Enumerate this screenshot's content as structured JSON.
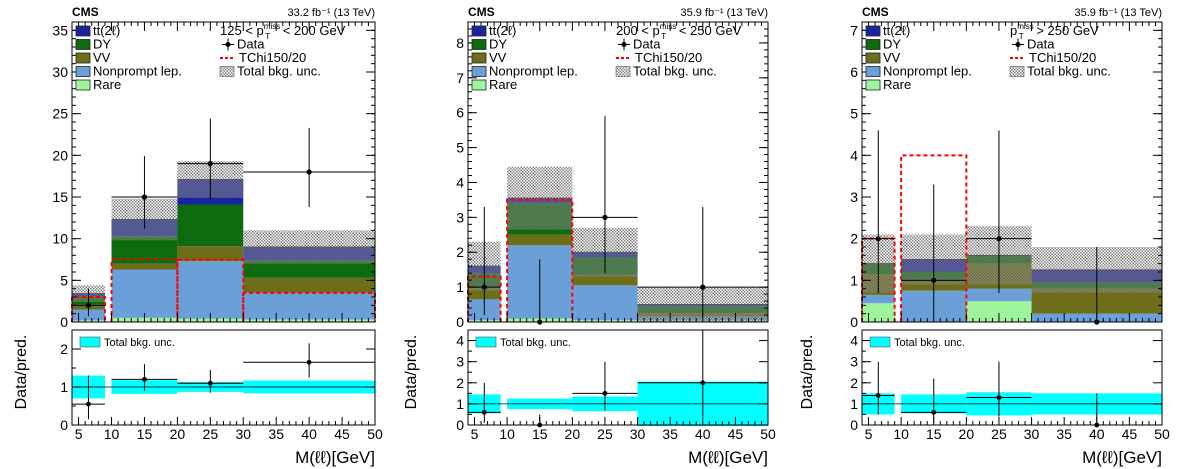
{
  "figure": {
    "y_label": "Data/pred.",
    "x_label": "M(ℓℓ)[GeV]",
    "experiment": "CMS",
    "ratio_legend": "Total bkg. unc."
  },
  "colors": {
    "ttbar": "#1a24a0",
    "DY": "#0d6b0d",
    "VV": "#6e6d1a",
    "Nonprompt": "#6a9fd8",
    "Rare": "#9ef59e",
    "signal": "#ff0000",
    "unc": "#9a9a9a",
    "ratio_unc": "#00ffff"
  },
  "chart_data": [
    {
      "type": "bar",
      "stacked": true,
      "lumi": "33.2 fb⁻¹ (13 TeV)",
      "region": "125 < p_T^miss < 200 GeV",
      "bins": [
        [
          4,
          9
        ],
        [
          10,
          20
        ],
        [
          20,
          30
        ],
        [
          30,
          50
        ]
      ],
      "xlim": [
        4,
        50
      ],
      "ylim": [
        0,
        36
      ],
      "yticks": [
        0,
        5,
        10,
        15,
        20,
        25,
        30,
        35
      ],
      "ratio_ylim": [
        0,
        2.5
      ],
      "ratio_yticks": [
        0,
        1,
        2
      ],
      "xticks": [
        5,
        10,
        15,
        20,
        25,
        30,
        35,
        40,
        45,
        50
      ],
      "legend": [
        "tt(2ℓ)",
        "DY",
        "VV",
        "Nonprompt lep.",
        "Rare",
        "Data",
        "TChi150/20",
        "Total bkg. unc."
      ],
      "series": [
        {
          "name": "Rare",
          "values": [
            0.2,
            0.5,
            0.4,
            0.3
          ]
        },
        {
          "name": "Nonprompt lep.",
          "values": [
            1.3,
            5.8,
            6.9,
            3.2
          ]
        },
        {
          "name": "VV",
          "values": [
            0.6,
            0.7,
            1.8,
            1.8
          ]
        },
        {
          "name": "DY",
          "values": [
            1.0,
            3.3,
            5.0,
            2.1
          ]
        },
        {
          "name": "tt(2ℓ)",
          "values": [
            0.3,
            2.0,
            3.0,
            1.6
          ]
        }
      ],
      "unc": [
        1.0,
        2.5,
        2.2,
        2.0
      ],
      "signal": [
        3.0,
        7.5,
        7.5,
        3.5
      ],
      "data": [
        {
          "x": 6.5,
          "y": 2.0,
          "lo": 1.3,
          "hi": 2.0
        },
        {
          "x": 15,
          "y": 15,
          "lo": 3.8,
          "hi": 4.9
        },
        {
          "x": 25,
          "y": 19,
          "lo": 4.3,
          "hi": 5.4
        },
        {
          "x": 40,
          "y": 18,
          "lo": 4.2,
          "hi": 5.3
        }
      ],
      "ratio": [
        {
          "x": 6.5,
          "y": 0.55,
          "lo": 0.4,
          "hi": 0.75
        },
        {
          "x": 15,
          "y": 1.2,
          "lo": 0.3,
          "hi": 0.4
        },
        {
          "x": 25,
          "y": 1.1,
          "lo": 0.25,
          "hi": 0.35
        },
        {
          "x": 40,
          "y": 1.65,
          "lo": 0.4,
          "hi": 0.5
        }
      ],
      "ratio_unc": [
        0.3,
        0.18,
        0.13,
        0.17
      ]
    },
    {
      "type": "bar",
      "stacked": true,
      "lumi": "35.9 fb⁻¹ (13 TeV)",
      "region": "200 < p_T^miss < 250 GeV",
      "bins": [
        [
          4,
          9
        ],
        [
          10,
          20
        ],
        [
          20,
          30
        ],
        [
          30,
          50
        ]
      ],
      "xlim": [
        4,
        50
      ],
      "ylim": [
        0,
        8.6
      ],
      "yticks": [
        0,
        1,
        2,
        3,
        4,
        5,
        6,
        7,
        8
      ],
      "ratio_ylim": [
        0,
        4.5
      ],
      "ratio_yticks": [
        0,
        1,
        2,
        3,
        4
      ],
      "xticks": [
        5,
        10,
        15,
        20,
        25,
        30,
        35,
        40,
        45,
        50
      ],
      "legend": [
        "tt(2ℓ)",
        "DY",
        "VV",
        "Nonprompt lep.",
        "Rare",
        "Data",
        "TChi150/20",
        "Total bkg. unc."
      ],
      "series": [
        {
          "name": "Rare",
          "values": [
            0.05,
            0.1,
            0.05,
            0.05
          ]
        },
        {
          "name": "Nonprompt lep.",
          "values": [
            0.6,
            2.1,
            1.0,
            0.1
          ]
        },
        {
          "name": "VV",
          "values": [
            0.35,
            0.3,
            0.3,
            0.1
          ]
        },
        {
          "name": "DY",
          "values": [
            0.4,
            0.9,
            0.5,
            0.2
          ]
        },
        {
          "name": "tt(2ℓ)",
          "values": [
            0.2,
            0.15,
            0.15,
            0.05
          ]
        }
      ],
      "unc": [
        0.7,
        0.9,
        0.7,
        0.5
      ],
      "signal": [
        1.3,
        3.5,
        0,
        0
      ],
      "data": [
        {
          "x": 6.5,
          "y": 1.0,
          "lo": 0.8,
          "hi": 2.3
        },
        {
          "x": 15,
          "y": 0,
          "lo": 0,
          "hi": 1.8
        },
        {
          "x": 25,
          "y": 3,
          "lo": 1.6,
          "hi": 2.9
        },
        {
          "x": 40,
          "y": 1.0,
          "lo": 0.8,
          "hi": 2.3
        }
      ],
      "ratio": [
        {
          "x": 6.5,
          "y": 0.6,
          "lo": 0.5,
          "hi": 1.4
        },
        {
          "x": 15,
          "y": 0,
          "lo": 0,
          "hi": 0.5
        },
        {
          "x": 25,
          "y": 1.5,
          "lo": 0.8,
          "hi": 1.5
        },
        {
          "x": 40,
          "y": 2.0,
          "lo": 1.6,
          "hi": 3.4
        }
      ],
      "ratio_unc": [
        0.45,
        0.25,
        0.35,
        1.05
      ]
    },
    {
      "type": "bar",
      "stacked": true,
      "lumi": "35.9 fb⁻¹ (13 TeV)",
      "region": "p_T^miss > 250 GeV",
      "bins": [
        [
          4,
          9
        ],
        [
          10,
          20
        ],
        [
          20,
          30
        ],
        [
          30,
          50
        ]
      ],
      "xlim": [
        4,
        50
      ],
      "ylim": [
        0,
        7.2
      ],
      "yticks": [
        0,
        1,
        2,
        3,
        4,
        5,
        6,
        7
      ],
      "ratio_ylim": [
        0,
        4.5
      ],
      "ratio_yticks": [
        0,
        1,
        2,
        3,
        4
      ],
      "xticks": [
        5,
        10,
        15,
        20,
        25,
        30,
        35,
        40,
        45,
        50
      ],
      "legend": [
        "tt(2ℓ)",
        "DY",
        "VV",
        "Nonprompt lep.",
        "Rare",
        "Data",
        "TChi150/20",
        "Total bkg. unc."
      ],
      "series": [
        {
          "name": "Rare",
          "values": [
            0.45,
            0.0,
            0.5,
            0.0
          ]
        },
        {
          "name": "Nonprompt lep.",
          "values": [
            0.2,
            0.75,
            0.3,
            0.2
          ]
        },
        {
          "name": "VV",
          "values": [
            0.5,
            0.25,
            0.6,
            0.6
          ]
        },
        {
          "name": "DY",
          "values": [
            0.25,
            0.2,
            0.2,
            0.15
          ]
        },
        {
          "name": "tt(2ℓ)",
          "values": [
            0.0,
            0.3,
            0.0,
            0.3
          ]
        }
      ],
      "unc": [
        0.7,
        0.6,
        0.7,
        0.55
      ],
      "signal": [
        2.0,
        4.0,
        0,
        0
      ],
      "data": [
        {
          "x": 6.5,
          "y": 2.0,
          "lo": 1.3,
          "hi": 2.6
        },
        {
          "x": 15,
          "y": 1.0,
          "lo": 0.8,
          "hi": 2.3
        },
        {
          "x": 25,
          "y": 2.0,
          "lo": 1.3,
          "hi": 2.6
        },
        {
          "x": 40,
          "y": 0,
          "lo": 0,
          "hi": 1.8
        }
      ],
      "ratio": [
        {
          "x": 6.5,
          "y": 1.4,
          "lo": 0.9,
          "hi": 1.6
        },
        {
          "x": 15,
          "y": 0.6,
          "lo": 0.5,
          "hi": 1.6
        },
        {
          "x": 25,
          "y": 1.3,
          "lo": 0.9,
          "hi": 1.7
        },
        {
          "x": 40,
          "y": 0,
          "lo": 0,
          "hi": 1.5
        }
      ],
      "ratio_unc": [
        0.5,
        0.45,
        0.55,
        0.5
      ]
    }
  ]
}
